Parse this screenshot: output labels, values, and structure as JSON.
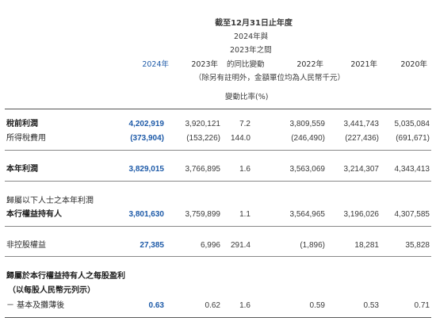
{
  "header": {
    "title": "截至12月31日止年度",
    "comparison_line1": "2024年與",
    "comparison_line2": "2023年之間",
    "change_label": "的同比變動",
    "unit_note": "（除另有註明外，金額單位均為人民幣千元）",
    "change_rate_label": "變動比率(%)",
    "years": [
      "2024年",
      "2023年",
      "2022年",
      "2021年",
      "2020年"
    ]
  },
  "rows": [
    {
      "label": "稅前利潤",
      "bold": true,
      "values": [
        "4,202,919",
        "3,920,121",
        "7.2",
        "3,809,559",
        "3,441,743",
        "5,035,084"
      ]
    },
    {
      "label": "所得稅費用",
      "bold": false,
      "values": [
        "(373,904)",
        "(153,226)",
        "144.0",
        "(246,490)",
        "(227,436)",
        "(691,671)"
      ]
    },
    {
      "label": "本年利潤",
      "bold": true,
      "values": [
        "3,829,015",
        "3,766,895",
        "1.6",
        "3,563,069",
        "3,214,307",
        "4,343,413"
      ]
    },
    {
      "label": "歸屬以下人士之本年利潤",
      "bold": false,
      "values": []
    },
    {
      "label": "本行權益持有人",
      "bold": true,
      "values": [
        "3,801,630",
        "3,759,899",
        "1.1",
        "3,564,965",
        "3,196,026",
        "4,307,585"
      ]
    },
    {
      "label": "非控股權益",
      "bold": false,
      "values": [
        "27,385",
        "6,996",
        "291.4",
        "(1,896)",
        "18,281",
        "35,828"
      ]
    },
    {
      "label": "歸屬於本行權益持有人之每股盈利",
      "bold": true,
      "values": []
    },
    {
      "label": "（以每股人民幣元列示）",
      "bold": true,
      "values": []
    },
    {
      "label": "－ 基本及攤薄後",
      "bold": false,
      "values": [
        "0.63",
        "0.62",
        "1.6",
        "0.59",
        "0.53",
        "0.71"
      ]
    }
  ],
  "colors": {
    "highlight": "#1d5aa8",
    "text": "#2b2b2b"
  }
}
